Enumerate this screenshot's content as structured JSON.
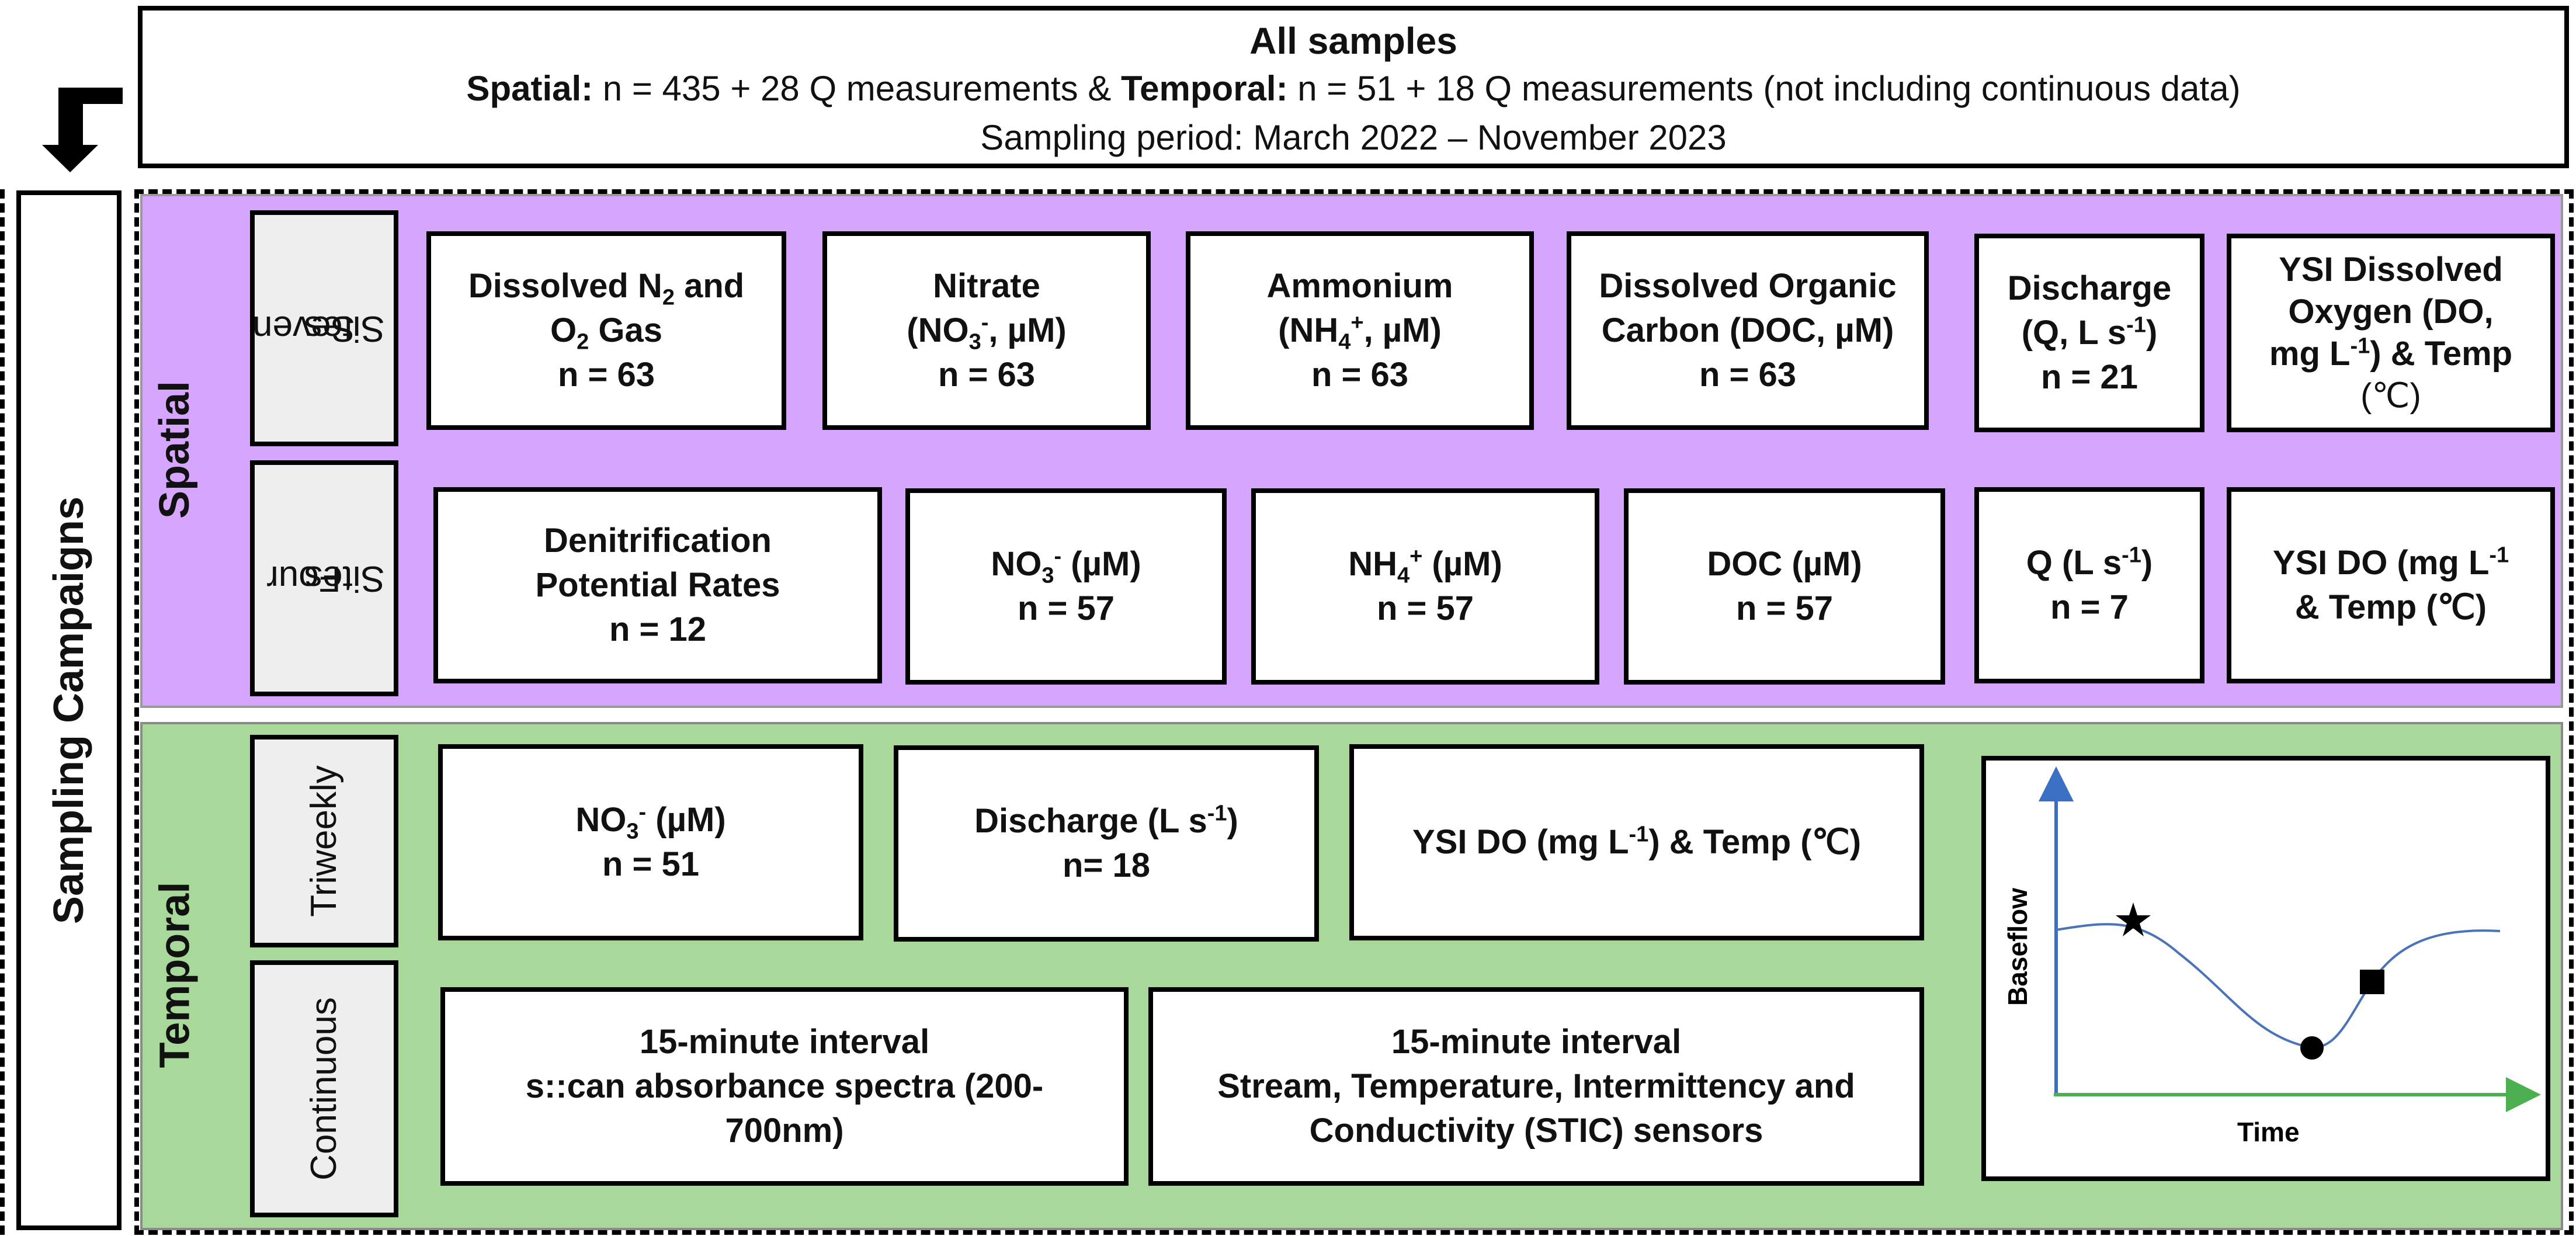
{
  "header": {
    "title": "All samples",
    "spatial_label": "Spatial:",
    "spatial_value": " n = 435 + 28 Q measurements & ",
    "temporal_label": "Temporal:",
    "temporal_value": " n = 51 + 18 Q measurements (not including continuous data)",
    "period": "Sampling period: March 2022 – November 2023"
  },
  "side_title": "Sampling Campaigns",
  "spatial": {
    "label": "Spatial",
    "groups": [
      {
        "label_line1": "Seven",
        "label_line2": "Sites",
        "cards": [
          {
            "l1": "Dissolved N",
            "l1_sub": "2",
            "l1_rest": " and",
            "l2": "O",
            "l2_sub": "2",
            "l2_rest": " Gas",
            "l3": "n = 63"
          },
          {
            "l1": "Nitrate",
            "l2": "(NO",
            "l2_sub": "3",
            "l2_sup": "-",
            "l2_rest": ", µM)",
            "l3": "n = 63"
          },
          {
            "l1": "Ammonium",
            "l2": "(NH",
            "l2_sub": "4",
            "l2_sup": "+",
            "l2_rest": ", µM)",
            "l3": "n = 63"
          },
          {
            "l1": "Dissolved Organic",
            "l2": "Carbon (DOC, µM)",
            "l3": "n = 63"
          },
          {
            "l1": "Discharge",
            "l2": "(Q, L s",
            "l2_sup": "-1",
            "l2_rest": ")",
            "l3": "n = 21"
          },
          {
            "l1": "YSI Dissolved",
            "l2": "Oxygen (DO,",
            "l3a": "mg L",
            "l3a_sup": "-1",
            "l3a_rest": ") & Temp",
            "l4": "(℃)"
          }
        ]
      },
      {
        "label_line1": "Four",
        "label_line2": "Sites",
        "cards": [
          {
            "l1": "Denitrification",
            "l2": "Potential Rates",
            "l3": "n = 12"
          },
          {
            "l1": "NO",
            "l1_sub": "3",
            "l1_sup": "-",
            "l1_rest": " (µM)",
            "l2": "n = 57"
          },
          {
            "l1": "NH",
            "l1_sub": "4",
            "l1_sup": "+",
            "l1_rest": " (µM)",
            "l2": "n = 57"
          },
          {
            "l1": "DOC (µM)",
            "l2": "n = 57"
          },
          {
            "l1": "Q (L s",
            "l1_sup": "-1",
            "l1_rest": ")",
            "l2": "n = 7"
          },
          {
            "l1": "YSI DO (mg L",
            "l1_sup": "-1",
            "l1_rest": "",
            "l2": "& Temp (℃)"
          }
        ]
      }
    ]
  },
  "temporal": {
    "label": "Temporal",
    "groups": [
      {
        "label": "Triweekly",
        "cards": [
          {
            "l1": "NO",
            "l1_sub": "3",
            "l1_sup": "-",
            "l1_rest": " (µM)",
            "l2": "n = 51"
          },
          {
            "l1": "Discharge (L s",
            "l1_sup": "-1",
            "l1_rest": ")",
            "l2": "n= 18"
          },
          {
            "l1": "YSI DO (mg L",
            "l1_sup": "-1",
            "l1_rest": ") & Temp (℃)"
          }
        ]
      },
      {
        "label": "Continuous",
        "cards": [
          {
            "l1": "15-minute interval",
            "l2": "s::can absorbance spectra (200-",
            "l3": "700nm)"
          },
          {
            "l1": "15-minute interval",
            "l2": "Stream, Temperature, Intermittency and",
            "l3": "Conductivity (STIC) sensors"
          }
        ]
      }
    ]
  },
  "hydrograph": {
    "ylabel": "Baseflow",
    "xlabel": "Time",
    "axis_x_color": "#4caf50",
    "axis_y_color": "#3a6fc4",
    "curve_color": "#4a73b8",
    "markers": [
      "star",
      "circle",
      "square"
    ]
  }
}
